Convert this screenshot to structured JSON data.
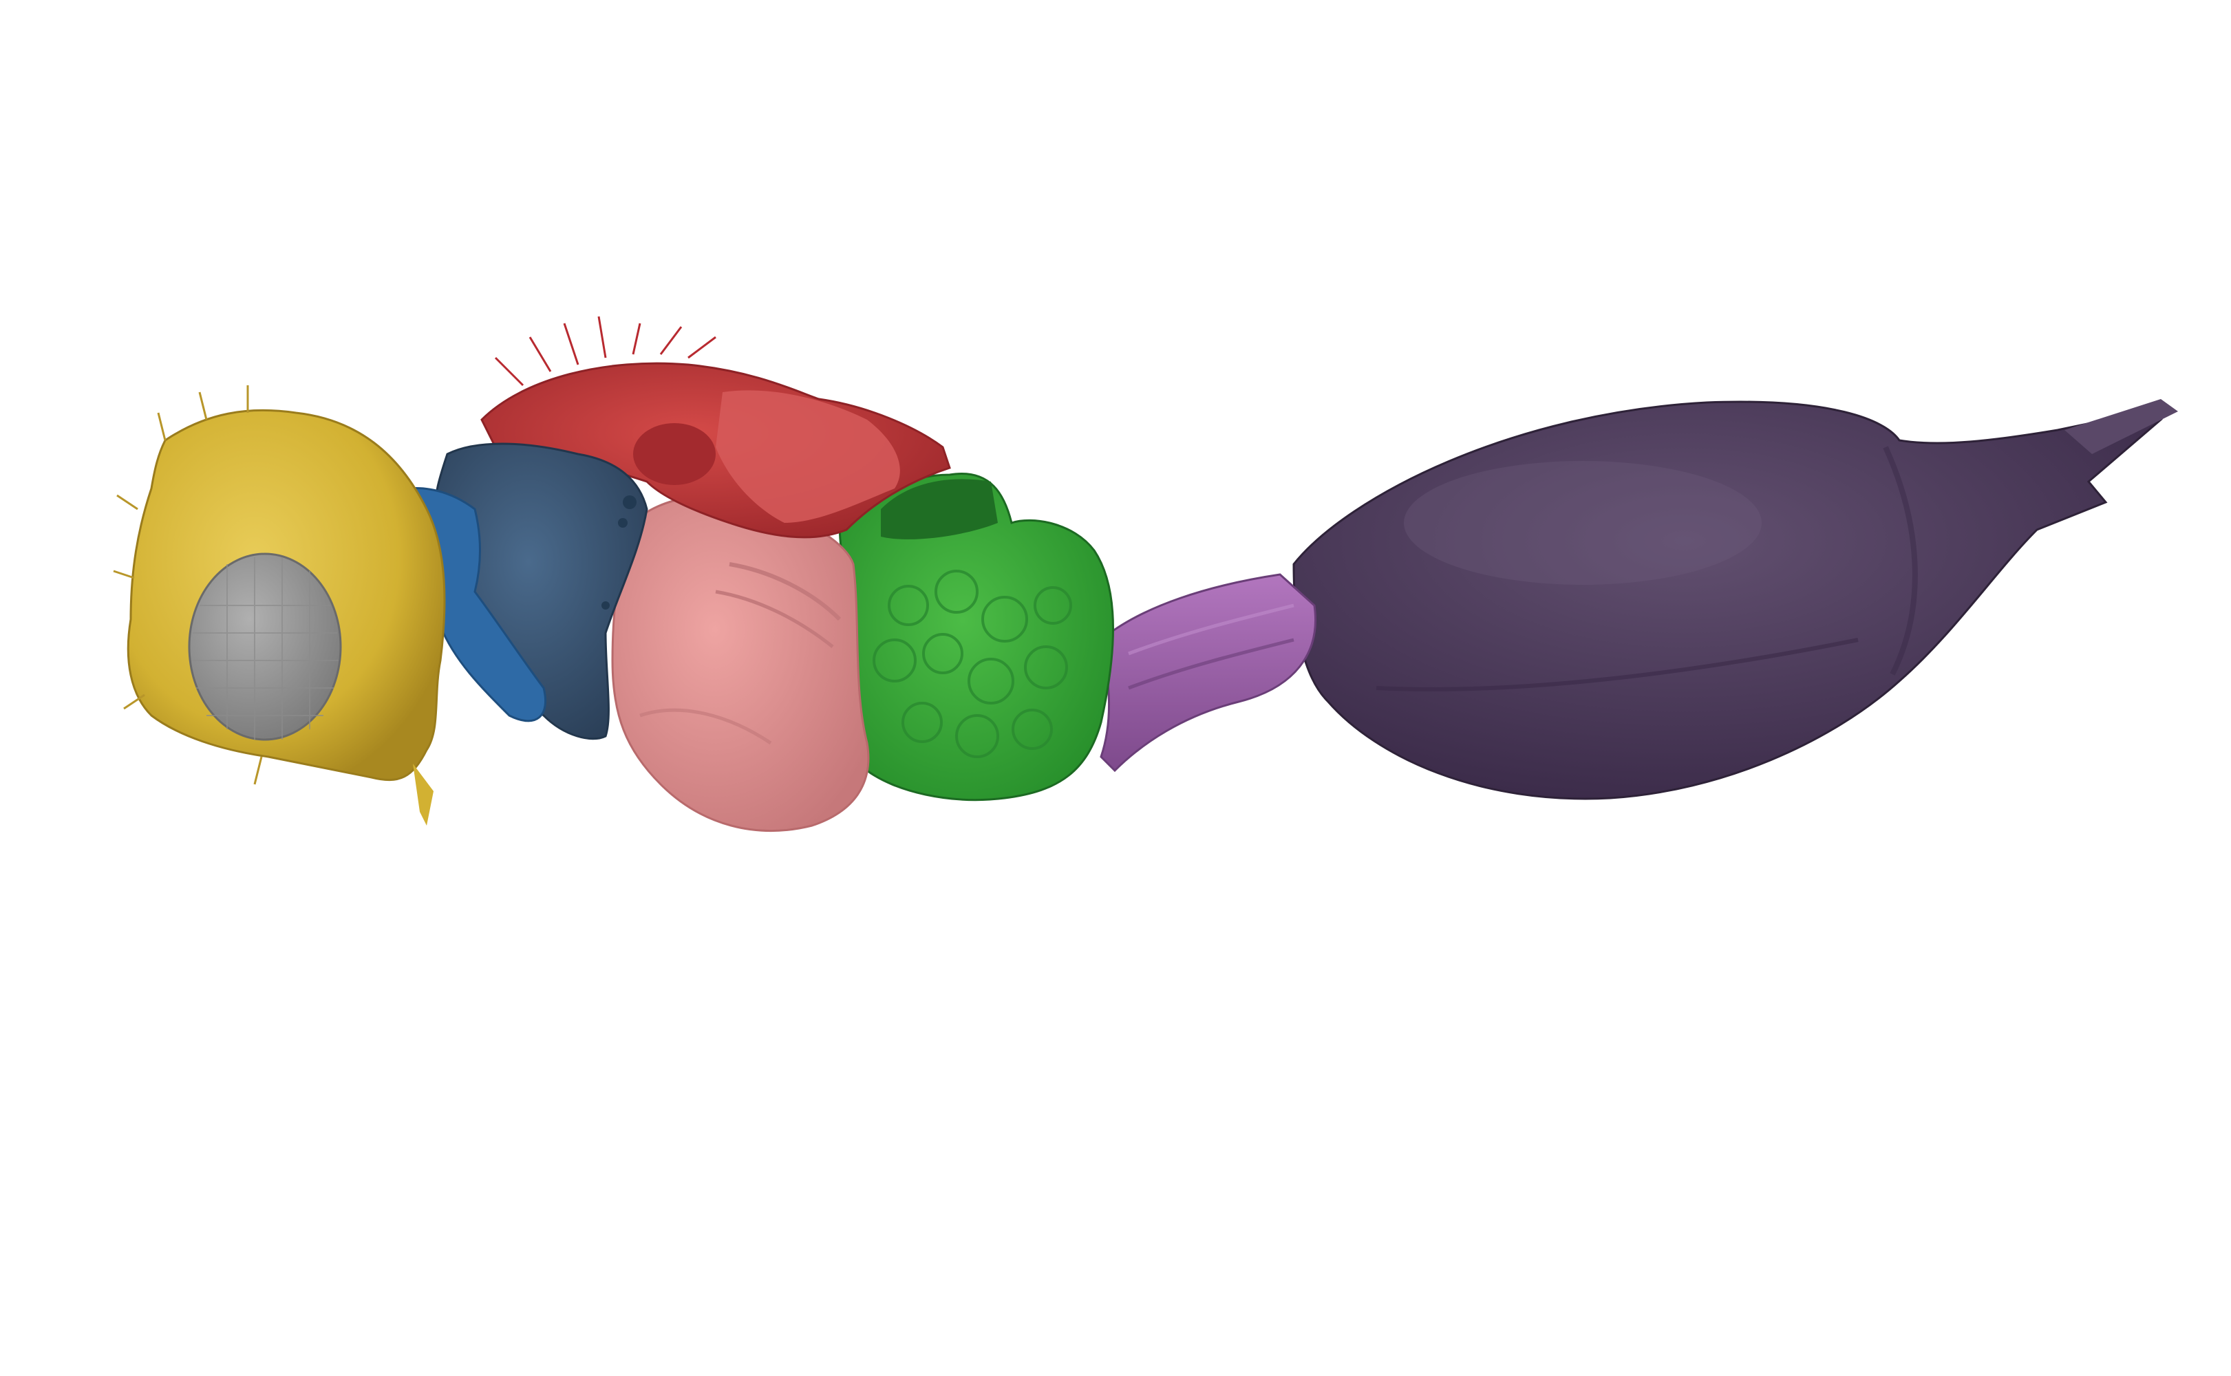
{
  "image": {
    "kind": "3D surface render of an insect (lateral view), segmented into colored body regions",
    "background": "#ffffff"
  },
  "segments": [
    {
      "id": "head",
      "color": "#d8b83a",
      "shade": "#b8962a"
    },
    {
      "id": "compound-eye",
      "color": "#9a9a9a",
      "shade": "#7d7d7d"
    },
    {
      "id": "neck",
      "color": "#2e6aa6",
      "shade": "#24588c"
    },
    {
      "id": "pronotum",
      "color": "#3c5a7a",
      "shade": "#2c445e"
    },
    {
      "id": "mesonotum",
      "color": "#c23a3c",
      "shade": "#9e2a2e"
    },
    {
      "id": "mesopleuron",
      "color": "#e09494",
      "shade": "#c87a7c"
    },
    {
      "id": "propodeum",
      "color": "#3daa3a",
      "shade": "#1f7a26"
    },
    {
      "id": "petiole",
      "color": "#9a5aa6",
      "shade": "#7a4688"
    },
    {
      "id": "gaster",
      "color": "#4e3a5e",
      "shade": "#3a2a48"
    }
  ]
}
